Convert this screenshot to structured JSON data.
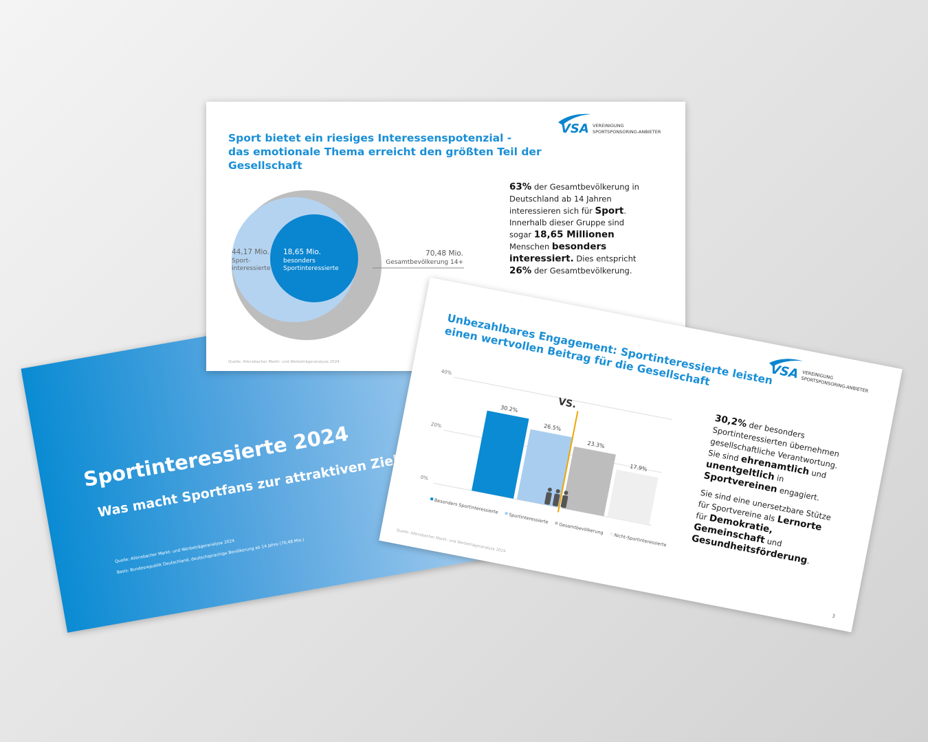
{
  "slide_1": {
    "logo": {
      "mark": "VSA",
      "line_1": "VEREINIGUNG",
      "line_2": "SPORTSPONSORING-ANBIETER"
    },
    "title_lines": [
      "Sport bietet ein riesiges Interessenspotenzial -",
      "das emotionale Thema erreicht den größten Teil der",
      "Gesellschaft"
    ],
    "circles": [
      {
        "value": "70,48 Mio.",
        "label_lines": [
          "Gesamtbevölkerung 14+"
        ]
      },
      {
        "value": "44,17 Mio.",
        "label_lines": [
          "Sport-",
          "interessierte"
        ]
      },
      {
        "value": "18,65 Mio.",
        "label_lines": [
          "besonders",
          "Sportinteressierte"
        ]
      }
    ],
    "paragraphs": [
      [
        [
          {
            "text": "63%",
            "bold": true
          },
          {
            "text": " der Gesamtbevölkerung in"
          }
        ],
        [
          {
            "text": "Deutschland ab 14 Jahren"
          }
        ],
        [
          {
            "text": "interessieren sich für "
          },
          {
            "text": "Sport",
            "bold": true
          },
          {
            "text": "."
          }
        ],
        [
          {
            "text": "Innerhalb dieser Gruppe sind"
          }
        ],
        [
          {
            "text": "sogar "
          },
          {
            "text": "18,65 Millionen",
            "bold": true
          }
        ],
        [
          {
            "text": "Menschen "
          },
          {
            "text": "besonders",
            "bold": true
          }
        ],
        [
          {
            "text": "interessiert.",
            "bold": true
          },
          {
            "text": " Dies entspricht"
          }
        ],
        [
          {
            "text": "26%",
            "bold": true
          },
          {
            "text": " der Gesamtbevölkerung."
          }
        ]
      ]
    ],
    "source": "Quelle: Allensbacher Markt- und Werbeträgeranalyse 2024"
  },
  "slide_2": {
    "title": "Sportinteressierte 2024",
    "subtitle": "Was macht Sportfans zur attraktiven Zielgruppe",
    "sources": [
      "Quelle: Allensbacher Markt- und Werbeträgeranalyse 2024",
      "Basis: Bundesrepublik Deutschland, deutschsprachige Bevölkerung ab 14 Jahre (70,48 Mio.)"
    ]
  },
  "slide_3": {
    "logo": {
      "mark": "VSA",
      "line_1": "VEREINIGUNG",
      "line_2": "SPORTSPONSORING-ANBIETER"
    },
    "title_lines": [
      "Unbezahlbares Engagement: Sportinteressierte leisten",
      "einen wertvollen Beitrag für die Gesellschaft"
    ],
    "chart": {
      "type": "bar",
      "categories": [
        "Besonders Sportinteressierte",
        "Sportinteressierte",
        "Gesamtbevölkerung",
        "Nicht-Sportinteressierte"
      ],
      "values": [
        30.2,
        26.5,
        23.3,
        17.9
      ],
      "value_labels": [
        "30.2%",
        "26.5%",
        "23.3%",
        "17.9%"
      ],
      "colors": [
        "#0a8bd3",
        "#a9cdef",
        "#bdbdbd",
        "#efefef"
      ],
      "ylim": [
        0,
        40
      ],
      "yticks": [
        {
          "value": 0,
          "label": "0%"
        },
        {
          "value": 20,
          "label": "20%"
        },
        {
          "value": 40,
          "label": "40%"
        }
      ],
      "grid": true,
      "annotation": "VS."
    },
    "paragraphs": [
      [
        [
          {
            "text": "30,2%",
            "bold": true
          },
          {
            "text": " der besonders"
          }
        ],
        [
          {
            "text": "Sportinteressierten übernehmen"
          }
        ],
        [
          {
            "text": "gesellschaftliche Verantwortung."
          }
        ],
        [
          {
            "text": "Sie sind "
          },
          {
            "text": "ehrenamtlich",
            "bold": true
          },
          {
            "text": " und"
          }
        ],
        [
          {
            "text": "unentgeltlich",
            "bold": true
          },
          {
            "text": " in"
          }
        ],
        [
          {
            "text": "Sportvereinen",
            "bold": true
          },
          {
            "text": " engagiert."
          }
        ]
      ],
      [
        [
          {
            "text": "Sie sind eine unersetzbare Stütze"
          }
        ],
        [
          {
            "text": "für Sportvereine als "
          },
          {
            "text": "Lernorte",
            "bold": true
          }
        ],
        [
          {
            "text": "für "
          },
          {
            "text": "Demokratie,",
            "bold": true
          }
        ],
        [
          {
            "text": "Gemeinschaft",
            "bold": true
          },
          {
            "text": " und"
          }
        ],
        [
          {
            "text": "Gesundheitsförderung",
            "bold": true
          },
          {
            "text": "."
          }
        ]
      ]
    ],
    "source": "Quelle: Allensbacher Markt- und Werbeträgeranalyse 2024",
    "page_number": "3"
  }
}
